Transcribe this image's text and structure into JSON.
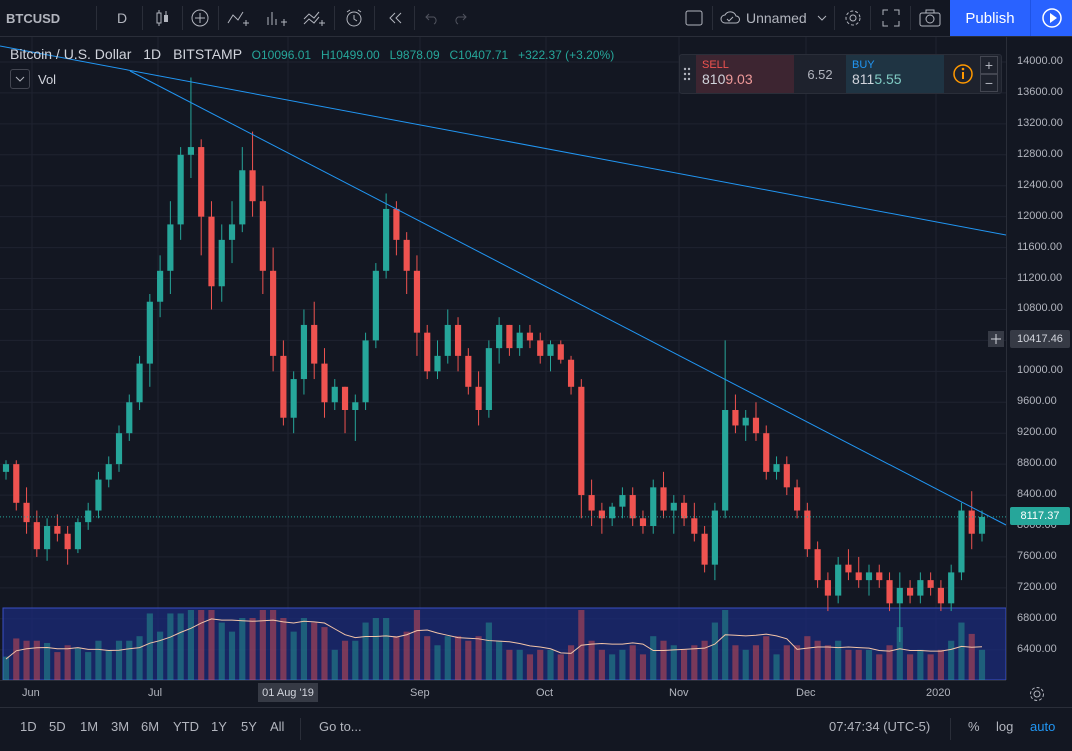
{
  "toolbar": {
    "symbol": "BTCUSD",
    "interval": "D",
    "layout_name": "Unnamed",
    "publish_label": "Publish"
  },
  "legend": {
    "title": "Bitcoin / U.S. Dollar",
    "interval": "1D",
    "exchange": "BITSTAMP",
    "open": "O10096.01",
    "high": "H10499.00",
    "low": "L9878.09",
    "close": "C10407.71",
    "change": "+322.37 (+3.20%)",
    "volume_label": "Vol"
  },
  "order_panel": {
    "sell_label": "SELL",
    "sell_price_a": "810",
    "sell_price_b": "9.03",
    "spread": "6.52",
    "buy_label": "BUY",
    "buy_price_a": "811",
    "buy_price_b": "5.55"
  },
  "price_axis": {
    "ticks": [
      "14000.00",
      "13600.00",
      "13200.00",
      "12800.00",
      "12400.00",
      "12000.00",
      "11600.00",
      "11200.00",
      "10800.00",
      "10400.00",
      "10000.00",
      "9600.00",
      "9200.00",
      "8800.00",
      "8400.00",
      "8000.00",
      "7600.00",
      "7200.00",
      "6800.00",
      "6400.00"
    ],
    "crosshair_price": "10417.46",
    "last_price": "8117.37"
  },
  "time_axis": {
    "ticks": [
      "Jun",
      "Jul",
      "Aug",
      "Sep",
      "Oct",
      "Nov",
      "Dec",
      "2020"
    ],
    "crosshair_date": "01 Aug '19"
  },
  "bottom_bar": {
    "ranges": [
      "1D",
      "5D",
      "1M",
      "3M",
      "6M",
      "YTD",
      "1Y",
      "5Y",
      "All"
    ],
    "goto_label": "Go to...",
    "clock": "07:47:34 (UTC-5)",
    "percent_label": "%",
    "log_label": "log",
    "auto_label": "auto"
  },
  "colors": {
    "up": "#26a69a",
    "down": "#ef5350",
    "accent": "#2962ff",
    "trendline": "#2196f3",
    "volume_zone": "#1b2b7a"
  },
  "chart_data": {
    "type": "candlestick",
    "symbol": "BTCUSD",
    "ylim": [
      6200,
      14300
    ],
    "grid": true,
    "candles_ohlc": [
      [
        8700,
        8850,
        8600,
        8800
      ],
      [
        8800,
        8850,
        8200,
        8300
      ],
      [
        8300,
        8500,
        7900,
        8050
      ],
      [
        8050,
        8200,
        7600,
        7700
      ],
      [
        7700,
        8100,
        7550,
        8000
      ],
      [
        8000,
        8150,
        7800,
        7900
      ],
      [
        7900,
        8000,
        7500,
        7700
      ],
      [
        7700,
        8100,
        7650,
        8050
      ],
      [
        8050,
        8300,
        7950,
        8200
      ],
      [
        8200,
        8700,
        8100,
        8600
      ],
      [
        8600,
        8900,
        8500,
        8800
      ],
      [
        8800,
        9300,
        8700,
        9200
      ],
      [
        9200,
        9700,
        9100,
        9600
      ],
      [
        9600,
        10200,
        9500,
        10100
      ],
      [
        10100,
        11000,
        9800,
        10900
      ],
      [
        10900,
        11500,
        10700,
        11300
      ],
      [
        11300,
        12200,
        11000,
        11900
      ],
      [
        11900,
        12900,
        11700,
        12800
      ],
      [
        12800,
        13800,
        12500,
        12900
      ],
      [
        12900,
        13000,
        11500,
        12000
      ],
      [
        12000,
        12200,
        10800,
        11100
      ],
      [
        11100,
        11900,
        10900,
        11700
      ],
      [
        11700,
        12200,
        11400,
        11900
      ],
      [
        11900,
        12900,
        11800,
        12600
      ],
      [
        12600,
        13100,
        12000,
        12200
      ],
      [
        12200,
        12400,
        11000,
        11300
      ],
      [
        11300,
        11600,
        10000,
        10200
      ],
      [
        10200,
        10400,
        9300,
        9400
      ],
      [
        9400,
        10000,
        9200,
        9900
      ],
      [
        9900,
        10800,
        9700,
        10600
      ],
      [
        10600,
        10900,
        9900,
        10100
      ],
      [
        10100,
        10300,
        9400,
        9600
      ],
      [
        9600,
        9900,
        9500,
        9800
      ],
      [
        9800,
        9800,
        9200,
        9500
      ],
      [
        9500,
        9700,
        9100,
        9600
      ],
      [
        9600,
        10500,
        9500,
        10400
      ],
      [
        10400,
        11400,
        10300,
        11300
      ],
      [
        11300,
        12300,
        11200,
        12100
      ],
      [
        12100,
        12200,
        11500,
        11700
      ],
      [
        11700,
        11800,
        11000,
        11300
      ],
      [
        11300,
        11500,
        10200,
        10500
      ],
      [
        10500,
        10600,
        9900,
        10000
      ],
      [
        10000,
        10400,
        9900,
        10200
      ],
      [
        10200,
        10800,
        10100,
        10600
      ],
      [
        10600,
        10700,
        10000,
        10200
      ],
      [
        10200,
        10300,
        9700,
        9800
      ],
      [
        9800,
        10000,
        9300,
        9500
      ],
      [
        9500,
        10400,
        9400,
        10300
      ],
      [
        10300,
        10700,
        10100,
        10600
      ],
      [
        10600,
        10600,
        10200,
        10300
      ],
      [
        10300,
        10600,
        10200,
        10500
      ],
      [
        10500,
        10600,
        10300,
        10400
      ],
      [
        10400,
        10500,
        10100,
        10200
      ],
      [
        10200,
        10400,
        10000,
        10350
      ],
      [
        10350,
        10400,
        10100,
        10150
      ],
      [
        10150,
        10200,
        9700,
        9800
      ],
      [
        9800,
        9900,
        8100,
        8400
      ],
      [
        8400,
        8600,
        8000,
        8200
      ],
      [
        8200,
        8300,
        7900,
        8100
      ],
      [
        8100,
        8300,
        8000,
        8250
      ],
      [
        8250,
        8500,
        8100,
        8400
      ],
      [
        8400,
        8500,
        8000,
        8100
      ],
      [
        8100,
        8200,
        7900,
        8000
      ],
      [
        8000,
        8600,
        7900,
        8500
      ],
      [
        8500,
        8700,
        8100,
        8200
      ],
      [
        8200,
        8400,
        7900,
        8300
      ],
      [
        8300,
        8400,
        8000,
        8100
      ],
      [
        8100,
        8300,
        7800,
        7900
      ],
      [
        7900,
        8000,
        7400,
        7500
      ],
      [
        7500,
        8300,
        7300,
        8200
      ],
      [
        8200,
        10400,
        8100,
        9500
      ],
      [
        9500,
        9700,
        9200,
        9300
      ],
      [
        9300,
        9500,
        9100,
        9400
      ],
      [
        9400,
        9600,
        9100,
        9200
      ],
      [
        9200,
        9300,
        8600,
        8700
      ],
      [
        8700,
        8900,
        8600,
        8800
      ],
      [
        8800,
        8900,
        8400,
        8500
      ],
      [
        8500,
        8600,
        8100,
        8200
      ],
      [
        8200,
        8300,
        7600,
        7700
      ],
      [
        7700,
        7800,
        7200,
        7300
      ],
      [
        7300,
        7400,
        6900,
        7100
      ],
      [
        7100,
        7600,
        7000,
        7500
      ],
      [
        7500,
        7700,
        7300,
        7400
      ],
      [
        7400,
        7600,
        7200,
        7300
      ],
      [
        7300,
        7500,
        7100,
        7400
      ],
      [
        7400,
        7500,
        7200,
        7300
      ],
      [
        7300,
        7400,
        6900,
        7000
      ],
      [
        7000,
        7400,
        6500,
        7200
      ],
      [
        7200,
        7300,
        7000,
        7100
      ],
      [
        7100,
        7400,
        7000,
        7300
      ],
      [
        7300,
        7400,
        7100,
        7200
      ],
      [
        7200,
        7300,
        6900,
        7000
      ],
      [
        7000,
        7500,
        6900,
        7400
      ],
      [
        7400,
        8300,
        7300,
        8200
      ],
      [
        8200,
        8450,
        7700,
        7900
      ],
      [
        7900,
        8200,
        7800,
        8117
      ]
    ],
    "trendlines": [
      "steep downtrend from Jun high to Jan",
      "shallow downtrend from Jun to Jan"
    ],
    "volume_ma": true
  }
}
